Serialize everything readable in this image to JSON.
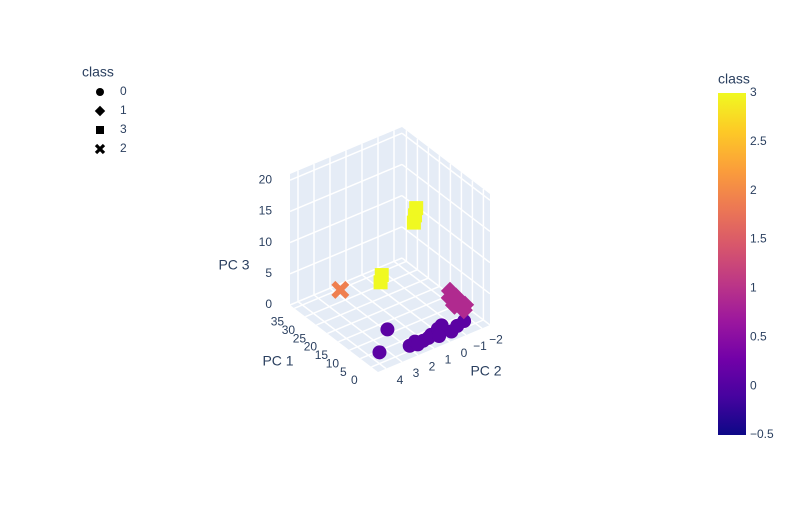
{
  "chart_data": {
    "type": "scatter3d",
    "xlabel": "PC 1",
    "ylabel": "PC 2",
    "zlabel": "PC 3",
    "xlim": [
      -3,
      37
    ],
    "xticks": [
      0,
      5,
      10,
      15,
      20,
      25,
      30,
      35
    ],
    "ylim": [
      -2.5,
      4.5
    ],
    "yticks": [
      {
        "value": -2,
        "label": "−2"
      },
      {
        "value": -1,
        "label": "−1"
      },
      0,
      1,
      2,
      3,
      4
    ],
    "zlim": [
      0,
      21
    ],
    "zticks": [
      0,
      5,
      10,
      15,
      20
    ],
    "grid": true,
    "legend_title": "class",
    "legend": "top-left",
    "colorbar": {
      "title": "class",
      "lim": [
        -0.5,
        3
      ],
      "ticks": [
        {
          "value": -0.5,
          "label": "−0.5"
        },
        0,
        0.5,
        1,
        1.5,
        2,
        2.5,
        3
      ],
      "colorscale": [
        "#0d0887",
        "#46039f",
        "#7201a8",
        "#9c179e",
        "#bd3786",
        "#d8576b",
        "#ed7953",
        "#fb9f3a",
        "#fdca26",
        "#f0f921"
      ]
    },
    "series": [
      {
        "name": "0",
        "symbol": "circle",
        "color": "#5b02a3",
        "x": [
          2,
          1.5,
          0.5,
          1,
          2.5,
          0,
          1,
          3,
          0.5,
          1.5,
          2,
          10.9,
          3.6,
          0
        ],
        "y": [
          0.5,
          1.9,
          1.2,
          0.8,
          0,
          -0.5,
          -1,
          -0.3,
          0.2,
          -1.5,
          1.5,
          2.0,
          3.5,
          1.6
        ],
        "z": [
          0.3,
          0.2,
          0.5,
          0.4,
          0.6,
          0.3,
          0.4,
          0.7,
          0.2,
          0.5,
          0.3,
          0.4,
          0.3,
          0.5
        ]
      },
      {
        "name": "1",
        "symbol": "diamond",
        "color": "#b02a8f",
        "x": [
          7.6,
          12,
          10,
          9,
          6,
          11,
          8,
          13
        ],
        "y": [
          -2.4,
          -2.05,
          -2.2,
          -1.9,
          -2.1,
          -2.3,
          -1.8,
          -2.2
        ],
        "z": [
          0.5,
          0.8,
          1.2,
          0.6,
          0.4,
          1,
          0.9,
          1.5
        ]
      },
      {
        "name": "3",
        "symbol": "square",
        "color": "#f0f921",
        "x": [
          12.9,
          12.7,
          13.1,
          19.3,
          19.1
        ],
        "y": [
          0,
          0.1,
          -0.1,
          1.2,
          1.3
        ],
        "z": [
          16,
          15,
          17,
          6,
          5
        ]
      },
      {
        "name": "2",
        "symbol": "x",
        "color": "#ef7f4f",
        "x": [
          32.3
        ],
        "y": [
          2.0
        ],
        "z": [
          1
        ]
      }
    ]
  }
}
